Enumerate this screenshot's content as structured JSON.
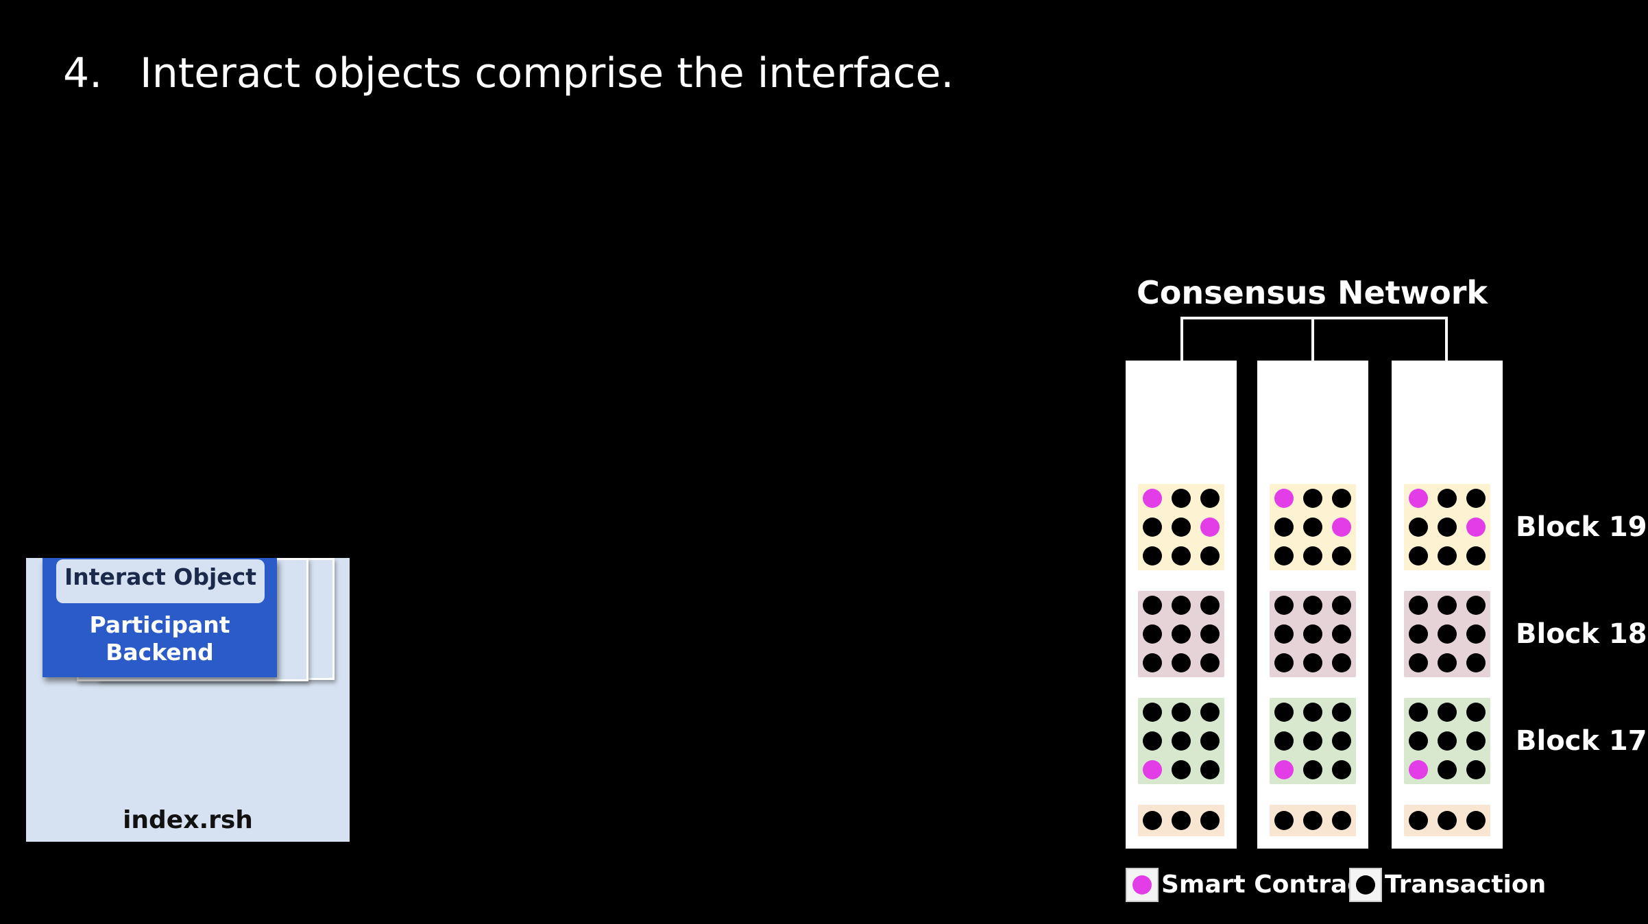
{
  "slide": {
    "number": "4.",
    "title": "Interact objects comprise the interface."
  },
  "program": {
    "file_label": "index.rsh",
    "interact_label": "Interact Object",
    "backend_line1": "Participant",
    "backend_line2": "Backend"
  },
  "network": {
    "title": "Consensus Network",
    "blocks": [
      {
        "label": "Block 19",
        "color": "#fdf2d2"
      },
      {
        "label": "Block 18",
        "color": "#e6d3d8"
      },
      {
        "label": "Block 17",
        "color": "#d7e8cf"
      },
      {
        "label": "",
        "color": "#f9e6d2"
      }
    ]
  },
  "legend": {
    "smart_contract": "Smart Contract",
    "transaction": "Transaction"
  },
  "colors": {
    "smart_contract": "#e33de8",
    "transaction": "#000000"
  }
}
